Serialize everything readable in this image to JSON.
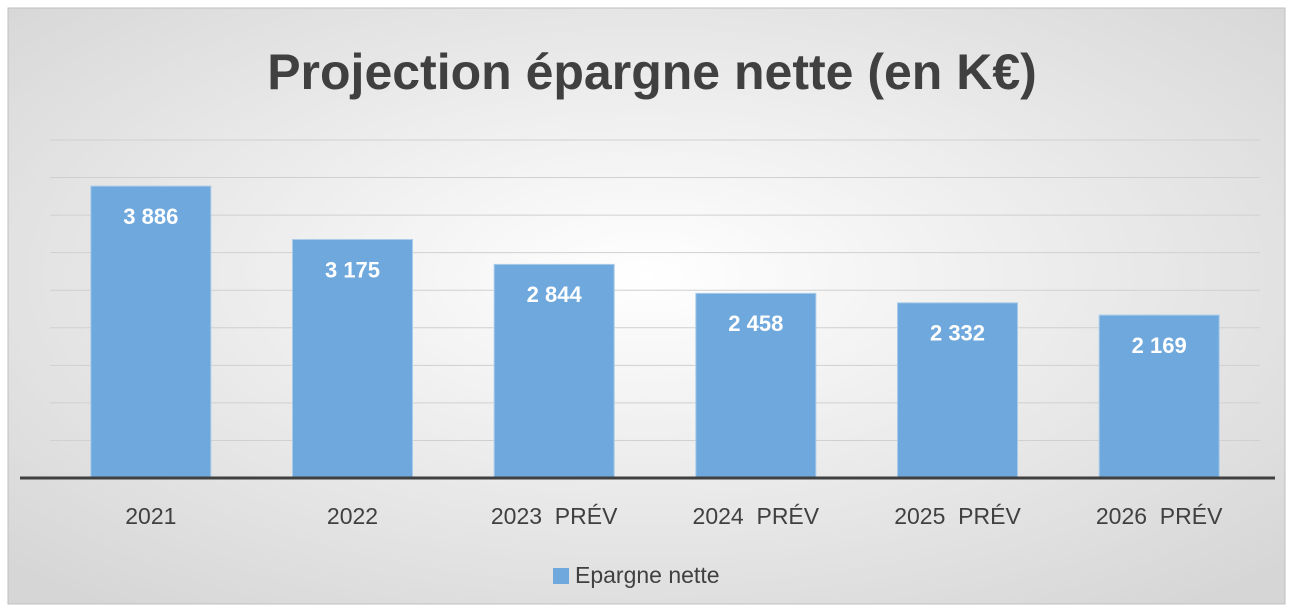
{
  "chart_data": {
    "type": "bar",
    "title": "Projection épargne nette (en K€)",
    "categories": [
      "2021",
      "2022",
      "2023  PRÉV",
      "2024  PRÉV",
      "2025  PRÉV",
      "2026  PRÉV"
    ],
    "series": [
      {
        "name": "Epargne nette",
        "color": "#6fa8dc",
        "values": [
          3886,
          3175,
          2844,
          2458,
          2332,
          2169
        ],
        "value_labels": [
          "3 886",
          "3 175",
          "2 844",
          "2 458",
          "2 332",
          "2 169"
        ]
      }
    ],
    "ylim": [
      0,
      4500
    ],
    "yticks": [
      0,
      500,
      1000,
      1500,
      2000,
      2500,
      3000,
      3500,
      4000,
      4500
    ],
    "grid": true
  }
}
